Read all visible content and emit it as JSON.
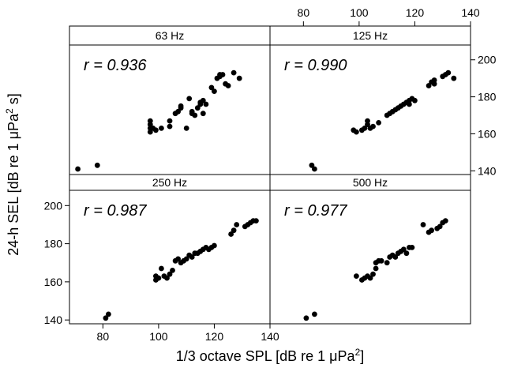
{
  "chart_data": {
    "type": "scatter",
    "layout": "2x2 trellis",
    "xlabel_pre": "1/3 octave SPL [dB re 1 μPa",
    "xlabel_sup": "2",
    "xlabel_post": "]",
    "ylabel_pre": "24-h SEL [dB re 1 μPa",
    "ylabel_sup": "2",
    "ylabel_post": " s]",
    "xlim": [
      68,
      140
    ],
    "ylim": [
      138,
      208
    ],
    "x_ticks": [
      80,
      100,
      120,
      140
    ],
    "y_ticks": [
      140,
      160,
      180,
      200
    ],
    "x_tick_labels": [
      "80",
      "100",
      "120",
      "140"
    ],
    "y_tick_labels": [
      "140",
      "160",
      "180",
      "200"
    ],
    "grid": false,
    "panels": [
      {
        "strip": "63 Hz",
        "r_label": "r = 0.936",
        "points": [
          [
            71,
            141
          ],
          [
            78,
            143
          ],
          [
            97,
            161
          ],
          [
            97,
            163
          ],
          [
            97,
            165
          ],
          [
            97,
            167
          ],
          [
            98,
            163
          ],
          [
            99,
            162
          ],
          [
            101,
            163
          ],
          [
            104,
            164
          ],
          [
            104,
            167
          ],
          [
            106,
            171
          ],
          [
            107,
            172
          ],
          [
            108,
            174
          ],
          [
            108,
            175
          ],
          [
            110,
            163
          ],
          [
            111,
            179
          ],
          [
            112,
            171
          ],
          [
            112,
            172
          ],
          [
            113,
            170
          ],
          [
            114,
            174
          ],
          [
            115,
            176
          ],
          [
            115,
            177
          ],
          [
            116,
            171
          ],
          [
            116,
            178
          ],
          [
            117,
            176
          ],
          [
            119,
            185
          ],
          [
            120,
            183
          ],
          [
            121,
            190
          ],
          [
            122,
            191
          ],
          [
            122,
            192
          ],
          [
            123,
            192
          ],
          [
            124,
            187
          ],
          [
            125,
            186
          ],
          [
            127,
            193
          ],
          [
            129,
            190
          ]
        ]
      },
      {
        "strip": "125 Hz",
        "r_label": "r = 0.990",
        "points": [
          [
            83,
            143
          ],
          [
            84,
            141
          ],
          [
            98,
            162
          ],
          [
            99,
            161
          ],
          [
            101,
            162
          ],
          [
            102,
            163
          ],
          [
            103,
            165
          ],
          [
            103,
            167
          ],
          [
            104,
            163
          ],
          [
            105,
            164
          ],
          [
            107,
            166
          ],
          [
            110,
            170
          ],
          [
            111,
            171
          ],
          [
            112,
            172
          ],
          [
            113,
            173
          ],
          [
            114,
            174
          ],
          [
            115,
            175
          ],
          [
            116,
            176
          ],
          [
            117,
            177
          ],
          [
            118,
            178
          ],
          [
            118,
            176
          ],
          [
            119,
            179
          ],
          [
            120,
            178
          ],
          [
            125,
            186
          ],
          [
            126,
            188
          ],
          [
            127,
            187
          ],
          [
            127,
            189
          ],
          [
            130,
            191
          ],
          [
            131,
            192
          ],
          [
            132,
            193
          ],
          [
            134,
            190
          ]
        ]
      },
      {
        "strip": "250 Hz",
        "r_label": "r = 0.987",
        "points": [
          [
            81,
            141
          ],
          [
            82,
            143
          ],
          [
            99,
            161
          ],
          [
            99,
            163
          ],
          [
            100,
            162
          ],
          [
            101,
            167
          ],
          [
            102,
            163
          ],
          [
            103,
            162
          ],
          [
            104,
            164
          ],
          [
            105,
            166
          ],
          [
            106,
            171
          ],
          [
            107,
            172
          ],
          [
            108,
            170
          ],
          [
            109,
            171
          ],
          [
            110,
            172
          ],
          [
            111,
            174
          ],
          [
            112,
            173
          ],
          [
            113,
            175
          ],
          [
            114,
            175
          ],
          [
            115,
            176
          ],
          [
            116,
            177
          ],
          [
            117,
            178
          ],
          [
            118,
            177
          ],
          [
            119,
            178
          ],
          [
            120,
            179
          ],
          [
            126,
            185
          ],
          [
            127,
            187
          ],
          [
            128,
            190
          ],
          [
            131,
            189
          ],
          [
            132,
            190
          ],
          [
            133,
            191
          ],
          [
            134,
            192
          ],
          [
            135,
            192
          ]
        ]
      },
      {
        "strip": "500 Hz",
        "r_label": "r = 0.977",
        "points": [
          [
            81,
            141
          ],
          [
            84,
            143
          ],
          [
            99,
            163
          ],
          [
            101,
            161
          ],
          [
            102,
            162
          ],
          [
            103,
            163
          ],
          [
            104,
            162
          ],
          [
            105,
            164
          ],
          [
            106,
            167
          ],
          [
            106,
            170
          ],
          [
            107,
            171
          ],
          [
            108,
            171
          ],
          [
            110,
            170
          ],
          [
            111,
            173
          ],
          [
            112,
            174
          ],
          [
            113,
            173
          ],
          [
            114,
            175
          ],
          [
            115,
            176
          ],
          [
            116,
            177
          ],
          [
            117,
            175
          ],
          [
            118,
            178
          ],
          [
            119,
            178
          ],
          [
            123,
            190
          ],
          [
            125,
            186
          ],
          [
            126,
            187
          ],
          [
            128,
            188
          ],
          [
            129,
            189
          ],
          [
            130,
            191
          ],
          [
            131,
            192
          ]
        ]
      }
    ]
  }
}
